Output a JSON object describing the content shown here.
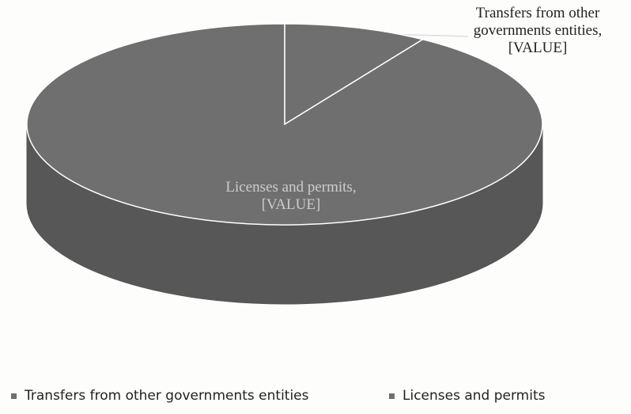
{
  "chart_data": {
    "type": "pie3d",
    "categories": [
      "Transfers from other governments entities",
      "Licenses and permits"
    ],
    "values": [
      9,
      91
    ],
    "value_labels": [
      "Transfers from other governments entities, [VALUE]",
      "Licenses and permits, [VALUE]"
    ],
    "color": "#6f6f6f"
  }
}
